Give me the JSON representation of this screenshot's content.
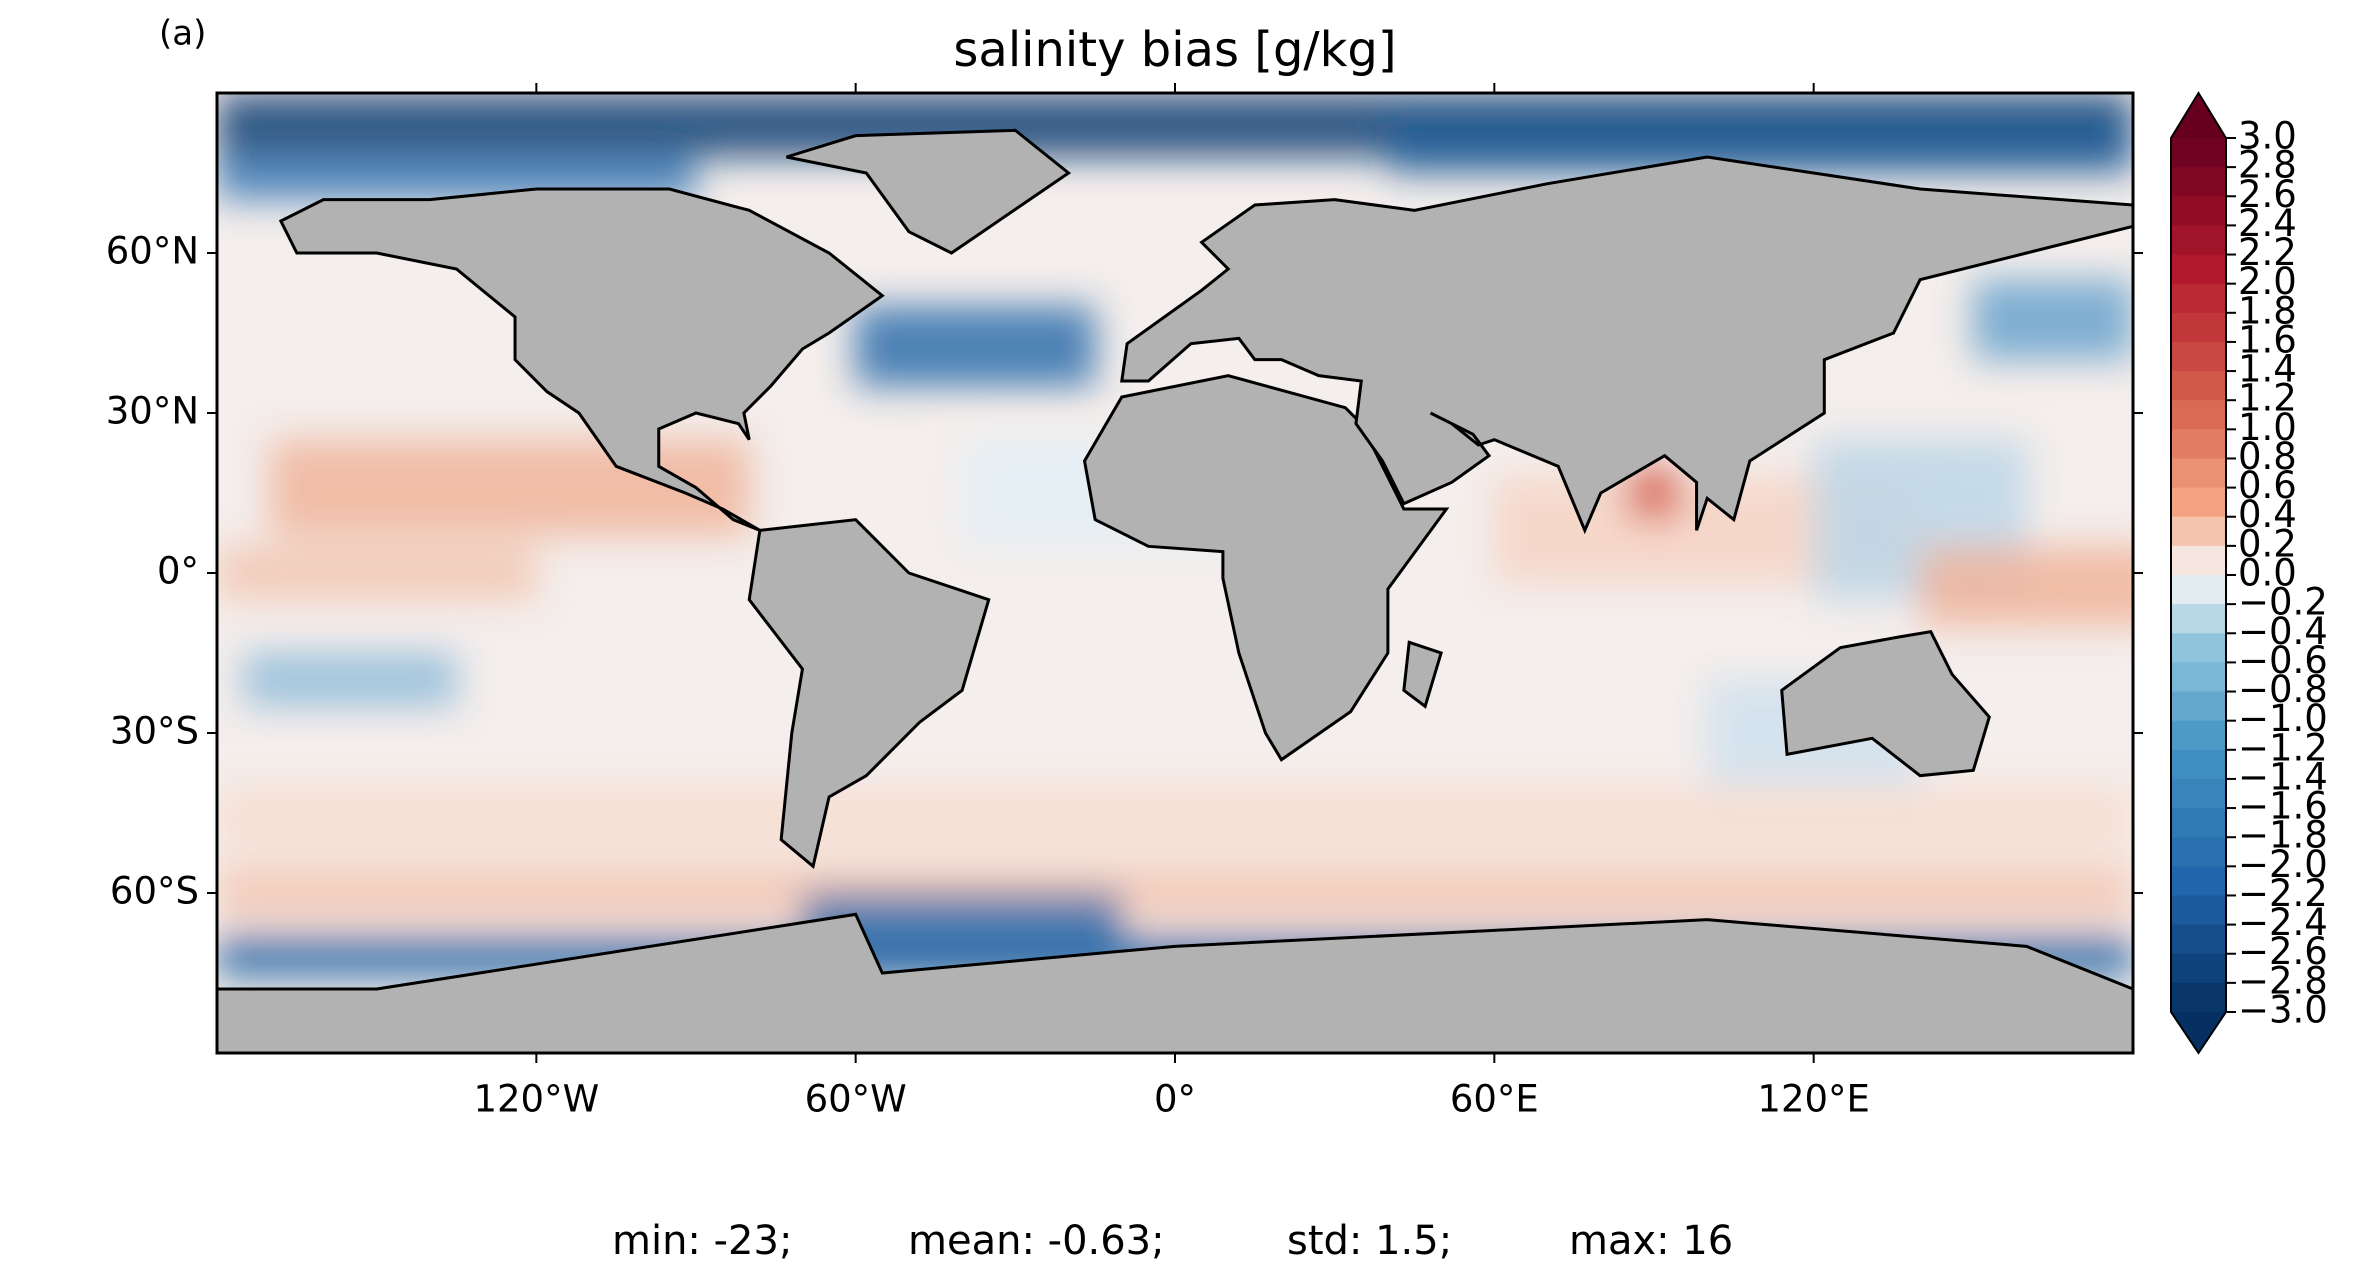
{
  "panel_label": "(a)",
  "title": "salinity bias [g/kg]",
  "map": {
    "xlim": [
      -180,
      180
    ],
    "ylim": [
      -90,
      90
    ],
    "xticks": [
      {
        "value": -120,
        "label": "120°W"
      },
      {
        "value": -60,
        "label": "60°W"
      },
      {
        "value": 0,
        "label": "0°"
      },
      {
        "value": 60,
        "label": "60°E"
      },
      {
        "value": 120,
        "label": "120°E"
      }
    ],
    "yticks": [
      {
        "value": 60,
        "label": "60°N"
      },
      {
        "value": 30,
        "label": "30°N"
      },
      {
        "value": 0,
        "label": "0°"
      },
      {
        "value": -30,
        "label": "30°S"
      },
      {
        "value": -60,
        "label": "60°S"
      }
    ]
  },
  "colorbar": {
    "lim": [
      -3,
      3
    ],
    "ticks": [
      {
        "value": 3,
        "label": "3.0"
      },
      {
        "value": 2.8,
        "label": "2.8"
      },
      {
        "value": 2.6,
        "label": "2.6"
      },
      {
        "value": 2.4,
        "label": "2.4"
      },
      {
        "value": 2.2,
        "label": "2.2"
      },
      {
        "value": 2,
        "label": "2.0"
      },
      {
        "value": 1.8,
        "label": "1.8"
      },
      {
        "value": 1.6,
        "label": "1.6"
      },
      {
        "value": 1.4,
        "label": "1.4"
      },
      {
        "value": 1.2,
        "label": "1.2"
      },
      {
        "value": 1,
        "label": "1.0"
      },
      {
        "value": 0.8,
        "label": "0.8"
      },
      {
        "value": 0.6,
        "label": "0.6"
      },
      {
        "value": 0.4,
        "label": "0.4"
      },
      {
        "value": 0.2,
        "label": "0.2"
      },
      {
        "value": 0,
        "label": "0.0"
      },
      {
        "value": -0.2,
        "label": "−0.2"
      },
      {
        "value": -0.4,
        "label": "−0.4"
      },
      {
        "value": -0.6,
        "label": "−0.6"
      },
      {
        "value": -0.8,
        "label": "−0.8"
      },
      {
        "value": -1,
        "label": "−1.0"
      },
      {
        "value": -1.2,
        "label": "−1.2"
      },
      {
        "value": -1.4,
        "label": "−1.4"
      },
      {
        "value": -1.6,
        "label": "−1.6"
      },
      {
        "value": -1.8,
        "label": "−1.8"
      },
      {
        "value": -2,
        "label": "−2.0"
      },
      {
        "value": -2.2,
        "label": "−2.2"
      },
      {
        "value": -2.4,
        "label": "−2.4"
      },
      {
        "value": -2.6,
        "label": "−2.6"
      },
      {
        "value": -2.8,
        "label": "−2.8"
      },
      {
        "value": -3,
        "label": "−3.0"
      }
    ]
  },
  "stats": [
    "min: -23;",
    "mean: -0.63;",
    "std: 1.5;",
    "max: 16"
  ]
}
